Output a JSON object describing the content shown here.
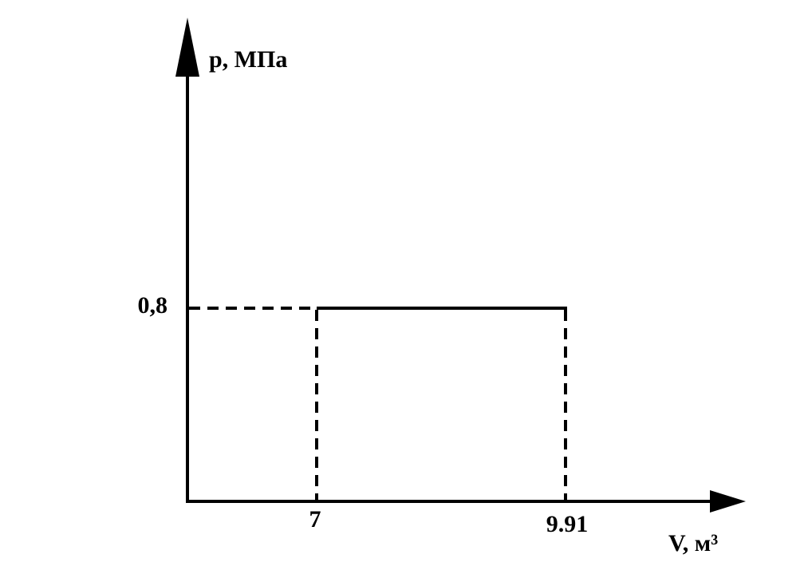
{
  "y_axis": {
    "label": "p, МПа",
    "tick": "0,8"
  },
  "x_axis": {
    "label": "V, м³",
    "ticks": [
      "7",
      "9.91"
    ]
  }
}
